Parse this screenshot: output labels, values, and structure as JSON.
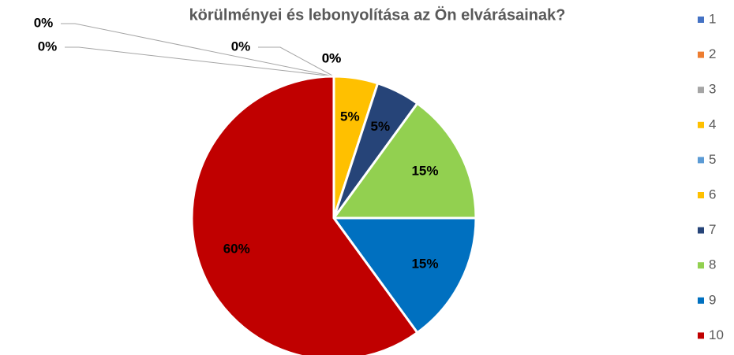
{
  "chart_data": {
    "type": "pie",
    "title": "körülményei és lebonyolítása az Ön elvárásainak?",
    "categories": [
      "1",
      "2",
      "3",
      "4",
      "5",
      "6",
      "7",
      "8",
      "9",
      "10"
    ],
    "values": [
      0,
      0,
      0,
      0,
      0,
      5,
      5,
      15,
      15,
      60
    ],
    "value_labels": [
      "0%",
      "0%",
      "0%",
      "0%",
      "0%",
      "5%",
      "5%",
      "15%",
      "15%",
      "60%"
    ],
    "colors": [
      "#4472C4",
      "#ED7D31",
      "#A5A5A5",
      "#FFC000",
      "#5B9BD5",
      "#FFC000",
      "#264478",
      "#92D050",
      "#0070C0",
      "#C00000"
    ],
    "legend": "right"
  }
}
